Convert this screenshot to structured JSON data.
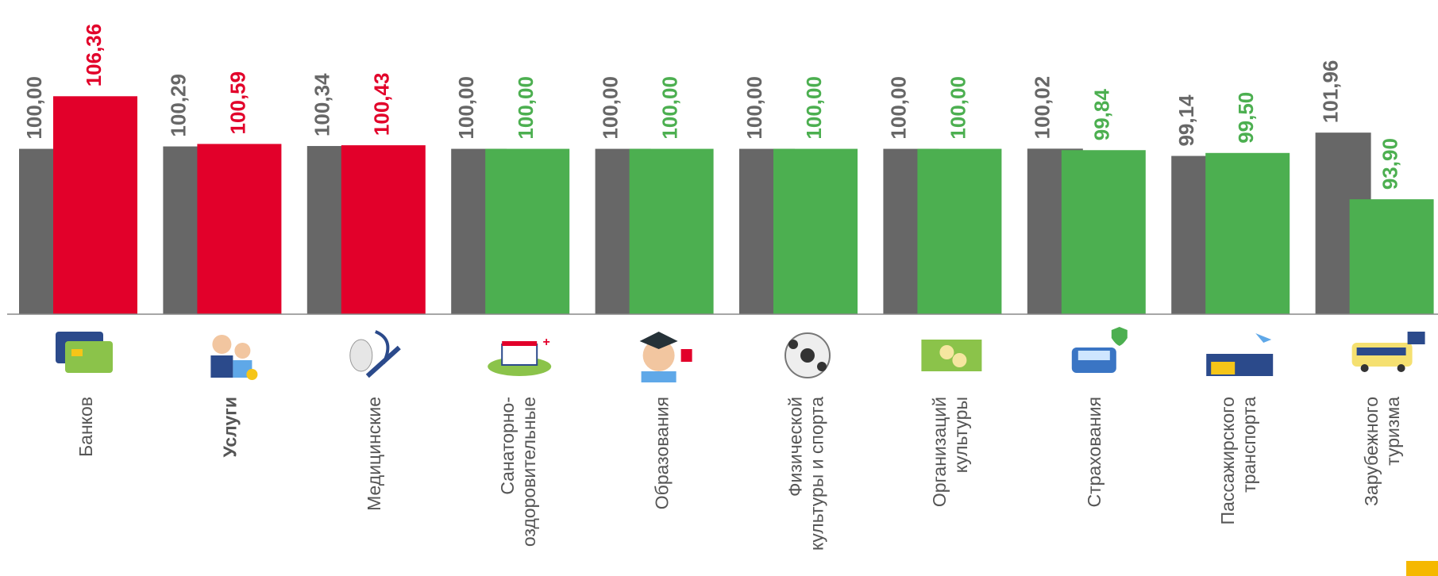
{
  "chart_data": {
    "type": "bar",
    "categories": [
      [
        "Банков"
      ],
      [
        "Услуги"
      ],
      [
        "Медицинские"
      ],
      [
        "Санаторно-",
        "оздоровительные"
      ],
      [
        "Образования"
      ],
      [
        "Физической",
        "культуры и спорта"
      ],
      [
        "Организаций",
        "культуры"
      ],
      [
        "Страхования"
      ],
      [
        "Пассажирского",
        "транспорта"
      ],
      [
        "Зарубежного",
        "туризма"
      ]
    ],
    "bold_categories": [
      1
    ],
    "series": [
      {
        "color": "#676767",
        "values": [
          100,
          100.29,
          100.34,
          100,
          100,
          100,
          100,
          100.02,
          99.14,
          101.96
        ],
        "value_labels": [
          "100,00",
          "100,29",
          "100,34",
          "100,00",
          "100,00",
          "100,00",
          "100,00",
          "100,02",
          "99,14",
          "101,96"
        ]
      },
      {
        "colors": [
          "#e2002a",
          "#e2002a",
          "#e2002a",
          "#4caf50",
          "#4caf50",
          "#4caf50",
          "#4caf50",
          "#4caf50",
          "#4caf50",
          "#4caf50"
        ],
        "values": [
          106.36,
          100.59,
          100.43,
          100,
          100,
          100,
          100,
          99.84,
          99.5,
          93.9
        ],
        "value_labels": [
          "106,36",
          "100,59",
          "100,43",
          "100,00",
          "100,00",
          "100,00",
          "100,00",
          "99,84",
          "99,50",
          "93,90"
        ]
      }
    ],
    "ylim": [
      80,
      118
    ],
    "grid": false
  }
}
